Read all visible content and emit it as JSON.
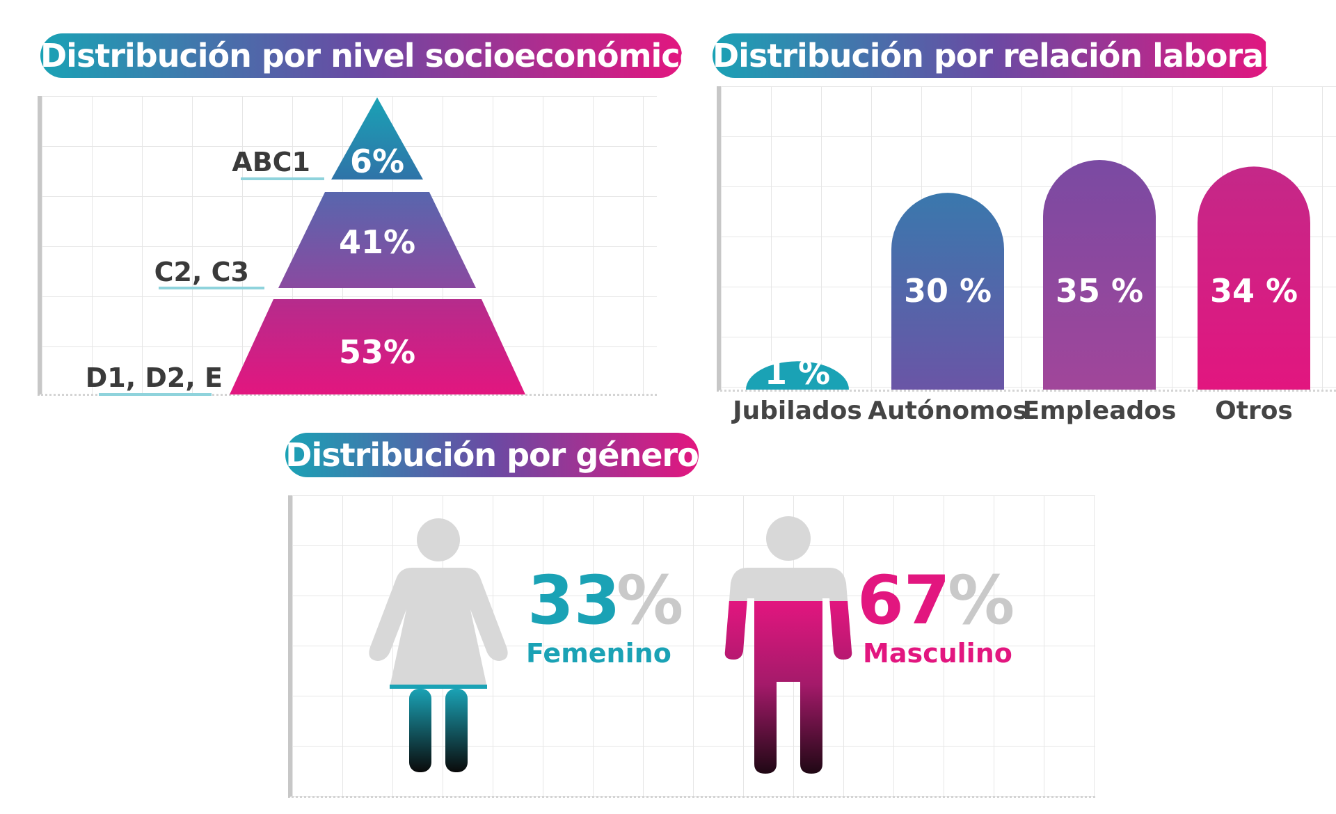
{
  "colors": {
    "teal": "#1aa2b5",
    "purple": "#7a4a9f",
    "magenta": "#e2167f",
    "figure_gray": "#d8d8d8",
    "label_dark": "#3a3a3a"
  },
  "chart_data": [
    {
      "type": "pyramid",
      "title": "Distribución por nivel socioeconómico",
      "categories": [
        "ABC1",
        "C2, C3",
        "D1, D2, E"
      ],
      "values": [
        6,
        41,
        53
      ],
      "value_labels": [
        "6%",
        "41%",
        "53%"
      ]
    },
    {
      "type": "bar",
      "title": "Distribución por relación laboral",
      "categories": [
        "Jubilados",
        "Autónomos",
        "Empleados",
        "Otros"
      ],
      "values": [
        1,
        30,
        35,
        34
      ],
      "value_labels": [
        "1 %",
        "30 %",
        "35 %",
        "34 %"
      ],
      "grid": true
    },
    {
      "type": "pictograph",
      "title": "Distribución por género",
      "categories": [
        "Femenino",
        "Masculino"
      ],
      "values": [
        33,
        67
      ],
      "value_numbers": [
        "33",
        "67"
      ],
      "percent_symbol": "%",
      "icons": [
        "female-figure-icon",
        "male-figure-icon"
      ]
    }
  ]
}
